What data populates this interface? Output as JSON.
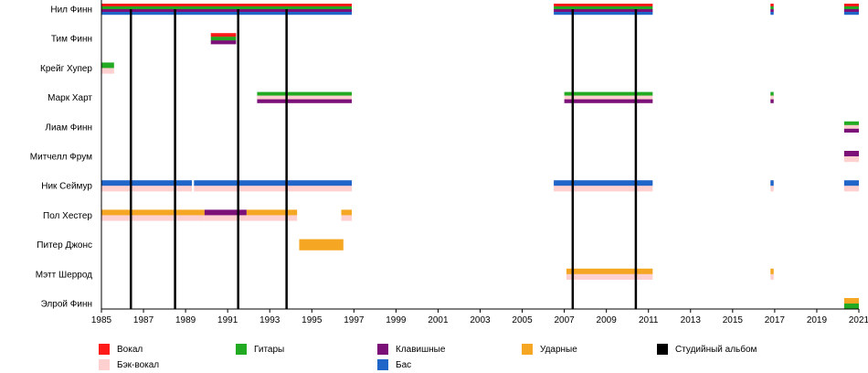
{
  "chart_data": {
    "type": "timeline",
    "x_range": [
      1985,
      2021
    ],
    "x_ticks": [
      "1985",
      "1987",
      "1989",
      "1991",
      "1993",
      "1995",
      "1997",
      "1999",
      "2001",
      "2003",
      "2005",
      "2007",
      "2009",
      "2011",
      "2013",
      "2015",
      "2017",
      "2019",
      "2021"
    ],
    "members": [
      {
        "name": "Нил Финн",
        "periods": [
          {
            "start": 1985,
            "end": 1996.9,
            "roles": [
              "vocal",
              "guitar",
              "keys",
              "bass"
            ]
          },
          {
            "start": 2006.5,
            "end": 2011.2,
            "roles": [
              "vocal",
              "guitar",
              "keys",
              "bass"
            ]
          },
          {
            "start": 2016.8,
            "end": 2016.95,
            "roles": [
              "vocal",
              "guitar",
              "keys",
              "bass"
            ]
          },
          {
            "start": 2020.3,
            "end": 2021,
            "roles": [
              "vocal",
              "guitar",
              "keys",
              "bass"
            ]
          }
        ]
      },
      {
        "name": "Тим Финн",
        "periods": [
          {
            "start": 1990.2,
            "end": 1991.4,
            "roles": [
              "vocal",
              "guitar",
              "keys"
            ]
          }
        ]
      },
      {
        "name": "Крейг Хупер",
        "periods": [
          {
            "start": 1985,
            "end": 1985.6,
            "roles": [
              "guitar",
              "backing"
            ]
          }
        ]
      },
      {
        "name": "Марк Харт",
        "periods": [
          {
            "start": 1992.4,
            "end": 1996.9,
            "roles": [
              "guitar",
              "backing",
              "keys"
            ]
          },
          {
            "start": 2007,
            "end": 2011.2,
            "roles": [
              "guitar",
              "backing",
              "keys"
            ]
          },
          {
            "start": 2016.8,
            "end": 2016.95,
            "roles": [
              "guitar",
              "backing",
              "keys"
            ]
          }
        ]
      },
      {
        "name": "Лиам Финн",
        "periods": [
          {
            "start": 2020.3,
            "end": 2021,
            "roles": [
              "guitar",
              "backing",
              "keys"
            ]
          }
        ]
      },
      {
        "name": "Митчелл Фрум",
        "periods": [
          {
            "start": 2020.3,
            "end": 2021,
            "roles": [
              "keys",
              "backing"
            ]
          }
        ]
      },
      {
        "name": "Ник Сеймур",
        "periods": [
          {
            "start": 1985,
            "end": 1989.3,
            "roles": [
              "bass",
              "backing"
            ]
          },
          {
            "start": 1989.4,
            "end": 1996.9,
            "roles": [
              "bass",
              "backing"
            ]
          },
          {
            "start": 2006.5,
            "end": 2011.2,
            "roles": [
              "bass",
              "backing"
            ]
          },
          {
            "start": 2016.8,
            "end": 2016.95,
            "roles": [
              "bass",
              "backing"
            ]
          },
          {
            "start": 2020.3,
            "end": 2021,
            "roles": [
              "bass",
              "backing"
            ]
          }
        ]
      },
      {
        "name": "Пол Хестер",
        "periods": [
          {
            "start": 1985,
            "end": 1989.9,
            "roles": [
              "drums",
              "backing"
            ]
          },
          {
            "start": 1989.9,
            "end": 1991.9,
            "roles": [
              "keys",
              "backing"
            ]
          },
          {
            "start": 1991.9,
            "end": 1994.3,
            "roles": [
              "drums",
              "backing"
            ]
          },
          {
            "start": 1996.4,
            "end": 1996.9,
            "roles": [
              "drums",
              "backing"
            ]
          }
        ]
      },
      {
        "name": "Питер Джонс",
        "periods": [
          {
            "start": 1994.4,
            "end": 1996.5,
            "roles": [
              "drums"
            ]
          }
        ]
      },
      {
        "name": "Мэтт Шеррод",
        "periods": [
          {
            "start": 2007.1,
            "end": 2011.2,
            "roles": [
              "drums",
              "backing"
            ]
          },
          {
            "start": 2016.8,
            "end": 2016.95,
            "roles": [
              "drums",
              "backing"
            ]
          }
        ]
      },
      {
        "name": "Элрой Финн",
        "periods": [
          {
            "start": 2020.3,
            "end": 2021,
            "roles": [
              "drums",
              "guitar"
            ]
          }
        ]
      }
    ],
    "studio_albums": [
      1986.4,
      1988.5,
      1991.5,
      1993.8,
      2007.4,
      2010.4
    ],
    "legend": [
      {
        "key": "vocal",
        "label": "Вокал"
      },
      {
        "key": "backing",
        "label": "Бэк-вокал"
      },
      {
        "key": "guitar",
        "label": "Гитары"
      },
      {
        "key": "keys",
        "label": "Клавишные"
      },
      {
        "key": "bass",
        "label": "Бас"
      },
      {
        "key": "drums",
        "label": "Ударные"
      },
      {
        "key": "album",
        "label": "Студийный альбом"
      }
    ],
    "colors": {
      "vocal": "#ff1a1a",
      "backing": "#ffd0d0",
      "guitar": "#22aa22",
      "keys": "#7a1078",
      "bass": "#1f66c8",
      "drums": "#f5a623",
      "album": "#000000"
    }
  }
}
